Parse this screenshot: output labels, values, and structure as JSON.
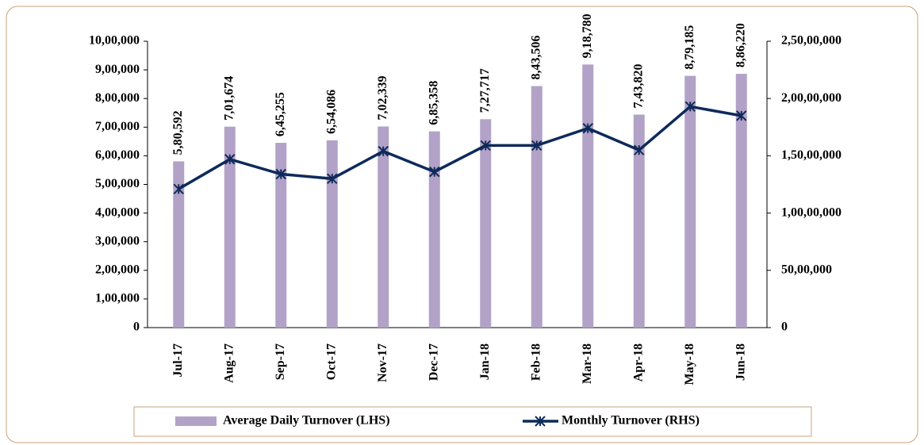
{
  "chart_data": {
    "type": "bar-line",
    "categories": [
      "Jul-17",
      "Aug-17",
      "Sep-17",
      "Oct-17",
      "Nov-17",
      "Dec-17",
      "Jan-18",
      "Feb-18",
      "Mar-18",
      "Apr-18",
      "May-18",
      "Jun-18"
    ],
    "series": [
      {
        "name": "Average Daily Turnover (LHS)",
        "type": "bar",
        "color": "#b3a2c7",
        "values": [
          580592,
          701674,
          645255,
          654086,
          702339,
          685358,
          727717,
          843506,
          918780,
          743820,
          879185,
          886220
        ],
        "value_labels": [
          "5,80,592",
          "7,01,674",
          "6,45,255",
          "6,54,086",
          "7,02,339",
          "6,85,358",
          "7,27,717",
          "8,43,506",
          "9,18,780",
          "7,43,820",
          "8,79,185",
          "8,86,220"
        ]
      },
      {
        "name": "Monthly Turnover (RHS)",
        "type": "line",
        "axis": "y2",
        "color": "#0d2a5a",
        "values": [
          12100000,
          14700000,
          13400000,
          13000000,
          15400000,
          13600000,
          15900000,
          15900000,
          17400000,
          15500000,
          19300000,
          18500000
        ]
      }
    ],
    "ylim": [
      0,
      1000000
    ],
    "yticks": [
      0,
      {
        "value": 100000,
        "label": "1,00,000"
      },
      {
        "value": 200000,
        "label": "2,00,000"
      },
      {
        "value": 300000,
        "label": "3,00,000"
      },
      {
        "value": 400000,
        "label": "4,00,000"
      },
      {
        "value": 500000,
        "label": "5,00,000"
      },
      {
        "value": 600000,
        "label": "6,00,000"
      },
      {
        "value": 700000,
        "label": "7,00,000"
      },
      {
        "value": 800000,
        "label": "8,00,000"
      },
      {
        "value": 900000,
        "label": "9,00,000"
      },
      {
        "value": 1000000,
        "label": "10,00,000"
      }
    ],
    "y2lim": [
      0,
      25000000
    ],
    "y2ticks": [
      0,
      {
        "value": 5000000,
        "label": "50,00,000"
      },
      {
        "value": 10000000,
        "label": "1,00,00,000"
      },
      {
        "value": 15000000,
        "label": "1,50,00,000"
      },
      {
        "value": 20000000,
        "label": "2,00,00,000"
      },
      {
        "value": 25000000,
        "label": "2,50,00,000"
      }
    ],
    "grid": false,
    "legend": "bottom"
  }
}
